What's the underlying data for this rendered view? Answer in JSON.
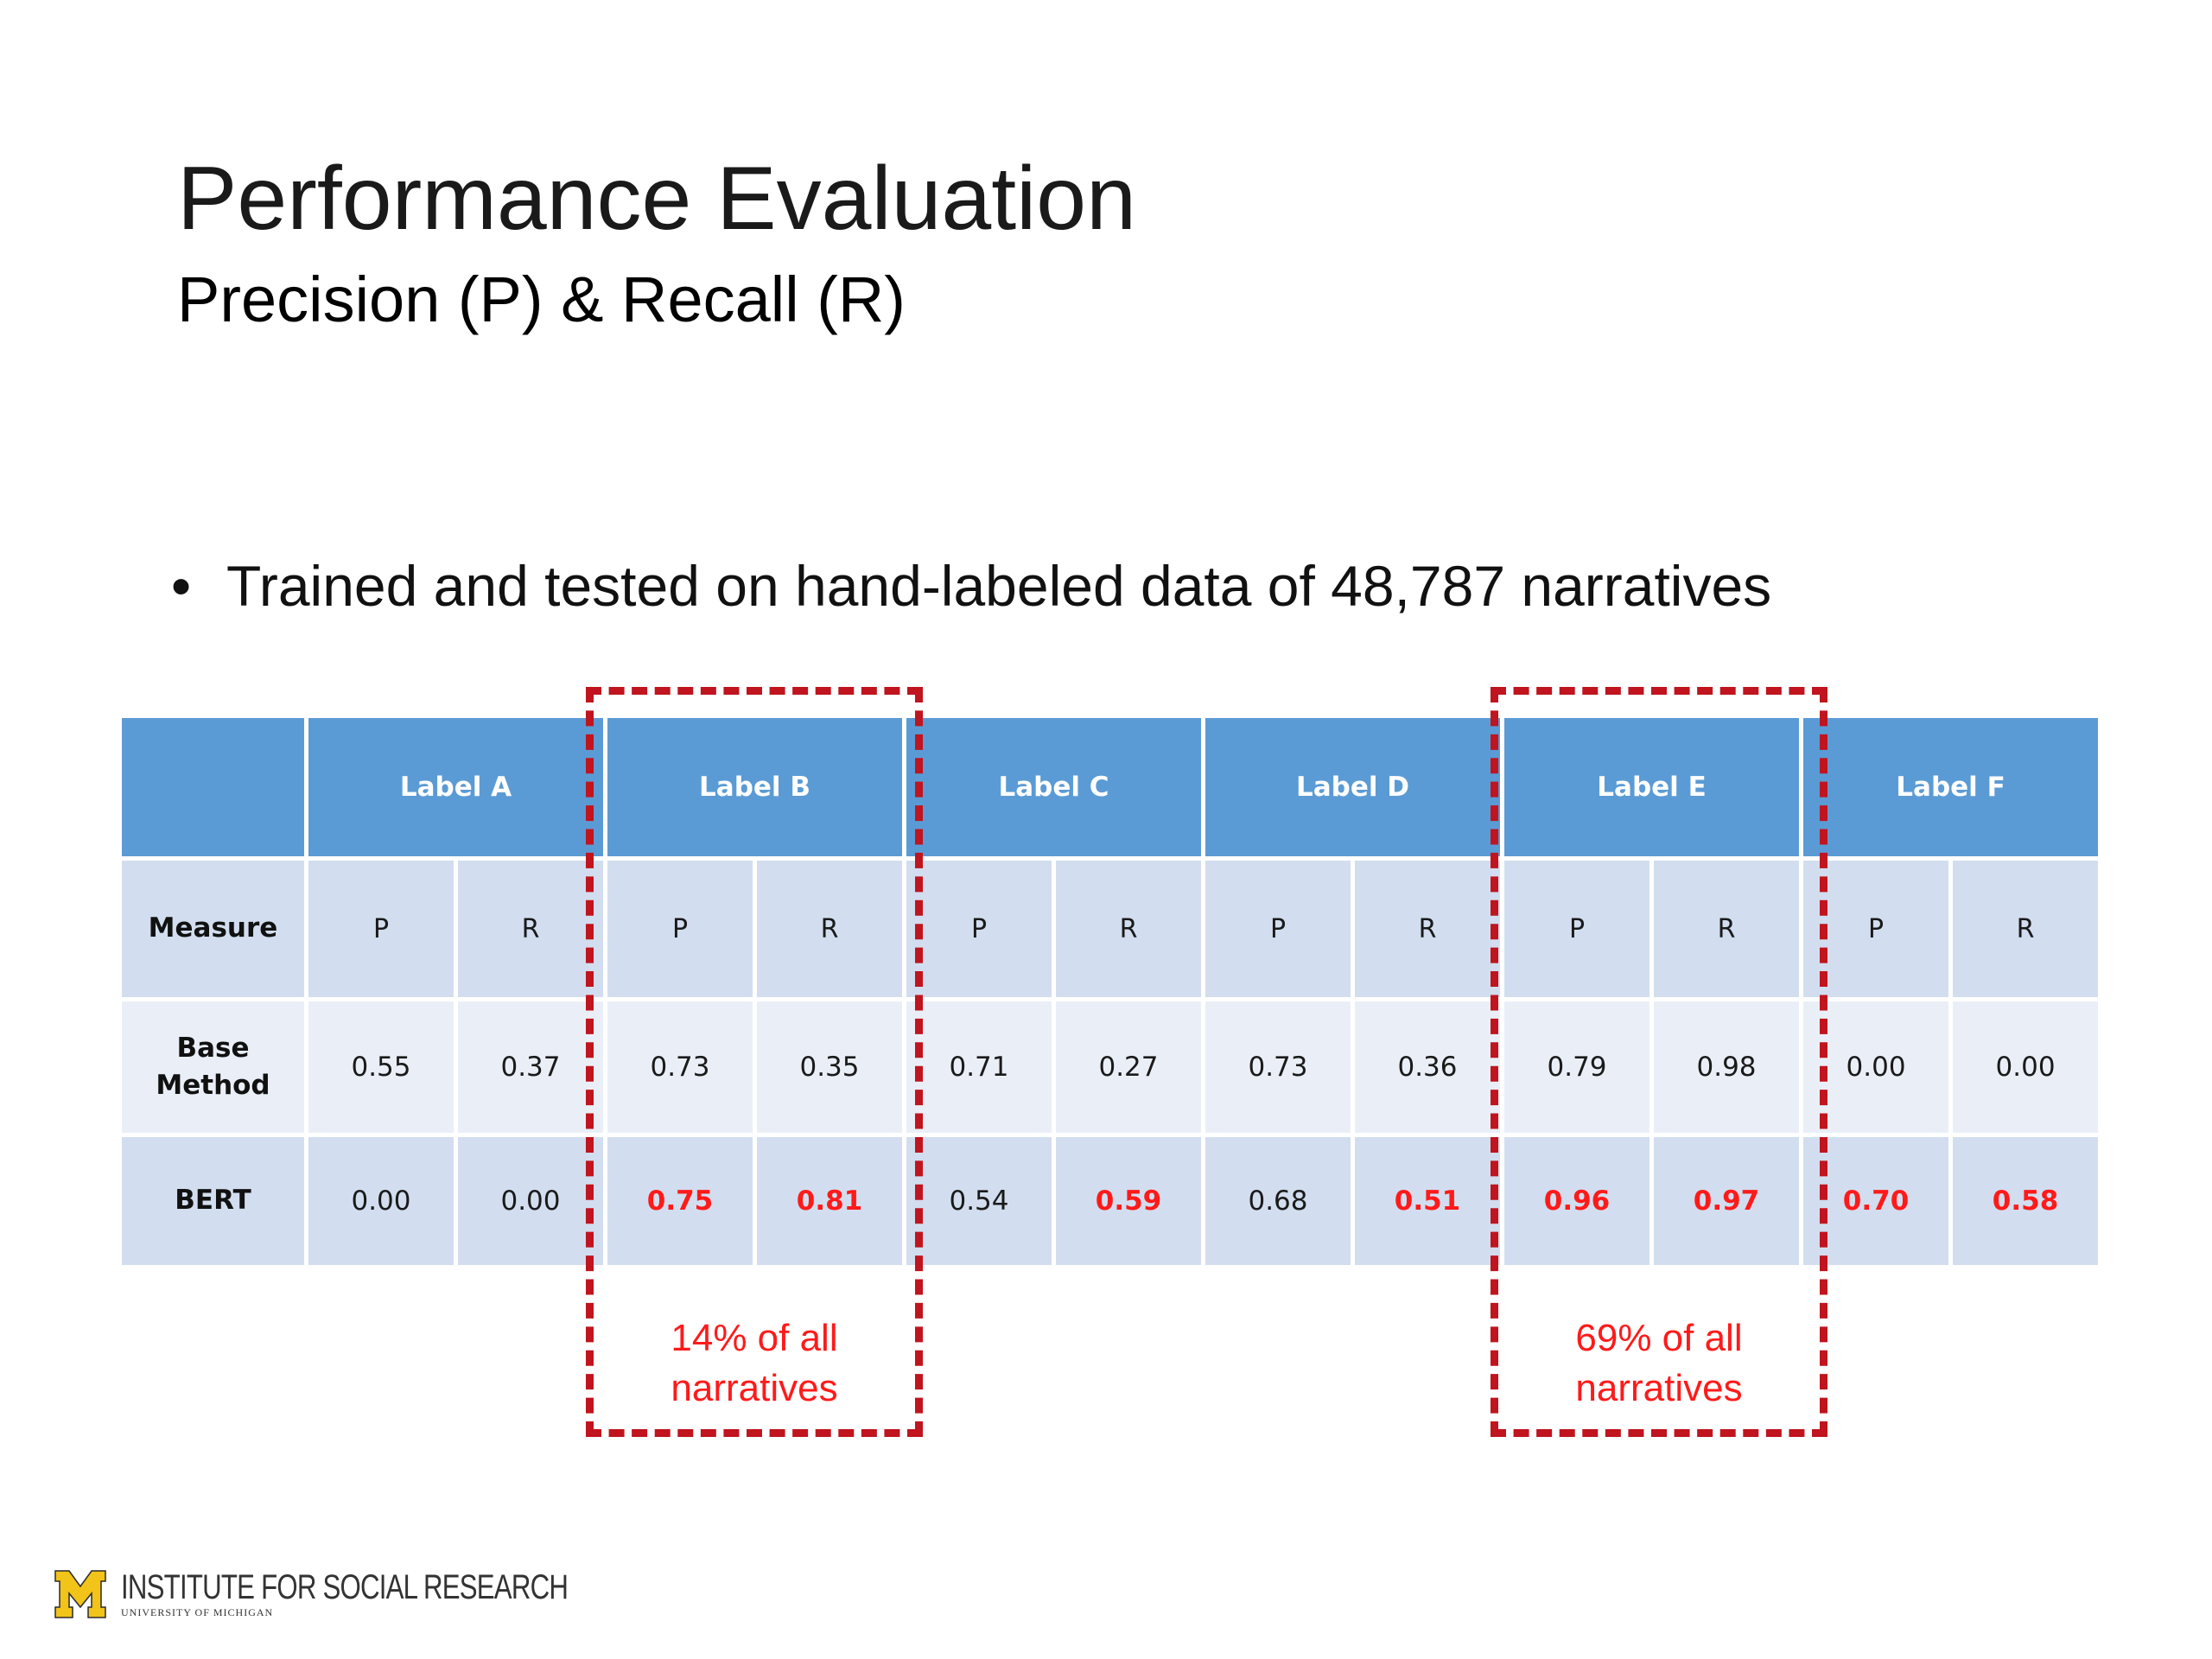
{
  "slide": {
    "title": "Performance Evaluation",
    "subtitle": "Precision (P) & Recall (R)",
    "bullet": "Trained and tested on hand-labeled data of 48,787 narratives"
  },
  "table": {
    "corner": "",
    "labels": [
      "Label A",
      "Label B",
      "Label C",
      "Label D",
      "Label E",
      "Label F"
    ],
    "measure_row": {
      "head": "Measure",
      "values": [
        "P",
        "R",
        "P",
        "R",
        "P",
        "R",
        "P",
        "R",
        "P",
        "R",
        "P",
        "R"
      ]
    },
    "base_row": {
      "head_line1": "Base",
      "head_line2": "Method",
      "values": [
        "0.55",
        "0.37",
        "0.73",
        "0.35",
        "0.71",
        "0.27",
        "0.73",
        "0.36",
        "0.79",
        "0.98",
        "0.00",
        "0.00"
      ]
    },
    "bert_row": {
      "head": "BERT",
      "values": [
        "0.00",
        "0.00",
        "0.75",
        "0.81",
        "0.54",
        "0.59",
        "0.68",
        "0.51",
        "0.96",
        "0.97",
        "0.70",
        "0.58"
      ],
      "highlighted": [
        false,
        false,
        true,
        true,
        false,
        true,
        false,
        true,
        true,
        true,
        true,
        true
      ]
    },
    "highlight_color": "#ff1a1a"
  },
  "callouts": [
    {
      "line1": "14% of all",
      "line2": "narratives",
      "label": "Label B"
    },
    {
      "line1": "69% of all",
      "line2": "narratives",
      "label": "Label E"
    }
  ],
  "colors": {
    "header_blue": "#5b9bd5",
    "row_dark": "#d2deef",
    "row_light": "#eaeff7",
    "dash_red": "#c0141e"
  },
  "logo": {
    "name": "INSTITUTE FOR SOCIAL RESEARCH",
    "sub": "UNIVERSITY OF MICHIGAN"
  }
}
